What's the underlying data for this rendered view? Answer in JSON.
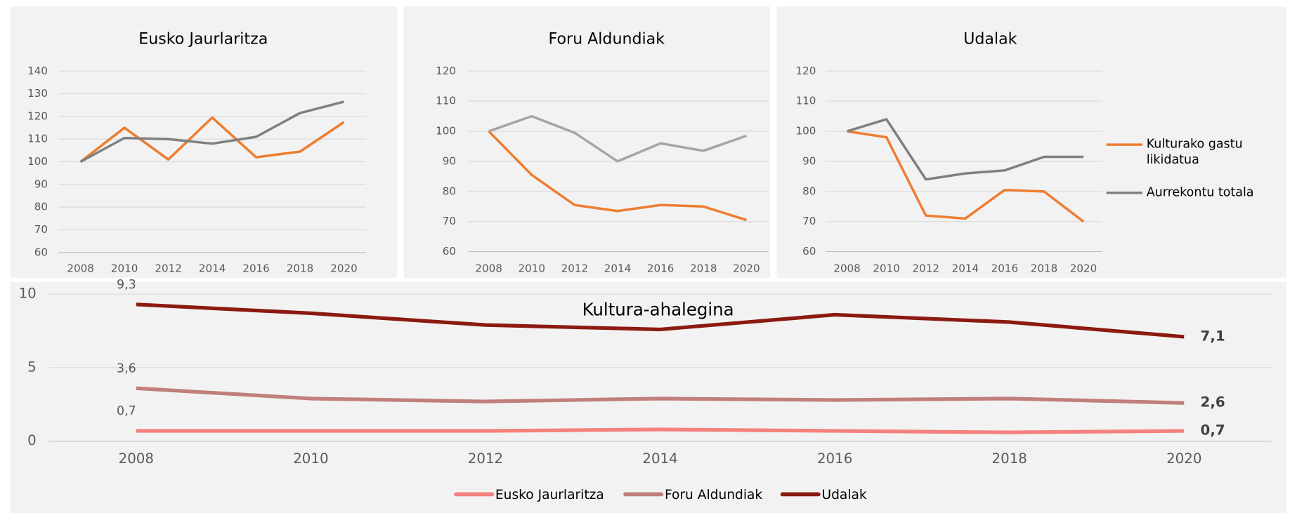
{
  "chart_data": [
    {
      "type": "line",
      "title": "Eusko Jaurlaritza",
      "categories": [
        "2008",
        "2010",
        "2012",
        "2014",
        "2016",
        "2018",
        "2020"
      ],
      "ylim": [
        60,
        140
      ],
      "yticks": [
        60,
        70,
        80,
        90,
        100,
        110,
        120,
        130,
        140
      ],
      "grid": true,
      "series": [
        {
          "color": "#ed7d31",
          "values": [
            100,
            115,
            101,
            119.5,
            102,
            104.5,
            117.5
          ]
        },
        {
          "color": "#808080",
          "values": [
            100,
            110.5,
            110,
            108,
            111,
            121.5,
            126.5
          ]
        }
      ]
    },
    {
      "type": "line",
      "title": "Foru Aldundiak",
      "categories": [
        "2008",
        "2010",
        "2012",
        "2014",
        "2016",
        "2018",
        "2020"
      ],
      "ylim": [
        60,
        120
      ],
      "yticks": [
        60,
        70,
        80,
        90,
        100,
        110,
        120
      ],
      "grid": true,
      "series": [
        {
          "color": "#ed7d31",
          "values": [
            100,
            85.5,
            75.5,
            73.5,
            75.5,
            75,
            70.5
          ]
        },
        {
          "color": "#a5a5a5",
          "values": [
            100,
            105,
            99.5,
            90,
            96,
            93.5,
            98.5
          ]
        }
      ]
    },
    {
      "type": "line",
      "title": "Udalak",
      "categories": [
        "2008",
        "2010",
        "2012",
        "2014",
        "2016",
        "2018",
        "2020"
      ],
      "ylim": [
        60,
        120
      ],
      "yticks": [
        60,
        70,
        80,
        90,
        100,
        110,
        120
      ],
      "grid": true,
      "legend": "right",
      "series": [
        {
          "name": "Kulturako gastu likidatua",
          "color": "#ed7d31",
          "values": [
            100,
            98,
            72,
            71,
            80.5,
            80,
            70
          ]
        },
        {
          "name": "Aurrekontu totala",
          "color": "#7f7f7f",
          "values": [
            100,
            104,
            84,
            86,
            87,
            91.5,
            91.5
          ]
        }
      ]
    },
    {
      "type": "line",
      "title": "Kultura-ahalegina",
      "categories": [
        "2008",
        "2010",
        "2012",
        "2014",
        "2016",
        "2018",
        "2020"
      ],
      "ylim": [
        0,
        10
      ],
      "yticks": [
        0,
        5,
        10
      ],
      "grid": true,
      "legend": "bottom",
      "series": [
        {
          "name": "Eusko Jaurlaritza",
          "color": "#f4817c",
          "values": [
            0.7,
            0.7,
            0.7,
            0.8,
            0.7,
            0.6,
            0.7
          ],
          "value_labels": [
            "0,7",
            null,
            null,
            null,
            null,
            null,
            "0,7"
          ]
        },
        {
          "name": "Foru Aldundiak",
          "color": "#c07f7a",
          "values": [
            3.6,
            2.9,
            2.7,
            2.9,
            2.8,
            2.9,
            2.6
          ],
          "value_labels": [
            "3,6",
            null,
            null,
            null,
            null,
            null,
            "2,6"
          ]
        },
        {
          "name": "Udalak",
          "color": "#8b1a10",
          "values": [
            9.3,
            8.7,
            7.9,
            7.6,
            8.6,
            8.1,
            7.1
          ],
          "value_labels": [
            "9,3",
            null,
            null,
            null,
            null,
            null,
            "7,1"
          ]
        }
      ]
    }
  ]
}
